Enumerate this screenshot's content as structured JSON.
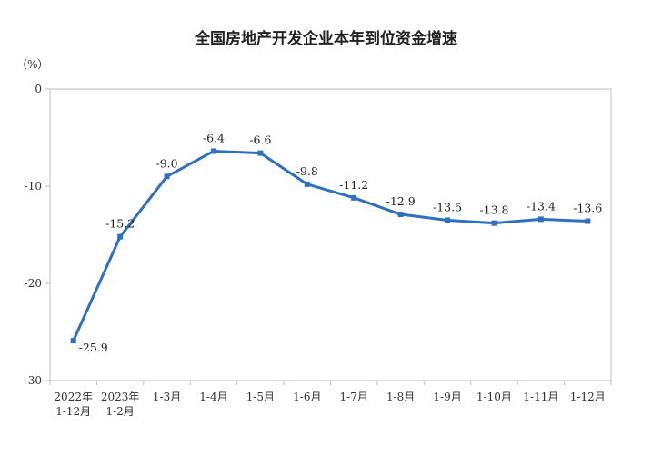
{
  "chart_data": {
    "type": "line",
    "title": "全国房地产开发企业本年到位资金增速",
    "unit": "（%）",
    "ylim": [
      -30,
      0
    ],
    "yticks": [
      "0",
      "-10",
      "-20",
      "-30"
    ],
    "ytick_values": [
      0,
      -10,
      -20,
      -30
    ],
    "categories": [
      [
        "2022年",
        "1-12月"
      ],
      [
        "2023年",
        "1-2月"
      ],
      [
        "1-3月"
      ],
      [
        "1-4月"
      ],
      [
        "1-5月"
      ],
      [
        "1-6月"
      ],
      [
        "1-7月"
      ],
      [
        "1-8月"
      ],
      [
        "1-9月"
      ],
      [
        "1-10月"
      ],
      [
        "1-11月"
      ],
      [
        "1-12月"
      ]
    ],
    "values": [
      -25.9,
      -15.2,
      -9.0,
      -6.4,
      -6.6,
      -9.8,
      -11.2,
      -12.9,
      -13.5,
      -13.8,
      -13.4,
      -13.6
    ],
    "value_labels": [
      "-25.9",
      "-15.2",
      "-9.0",
      "-6.4",
      "-6.6",
      "-9.8",
      "-11.2",
      "-12.9",
      "-13.5",
      "-13.8",
      "-13.4",
      "-13.6"
    ],
    "grid": false,
    "legend": "none",
    "line_color": "#2f6fc0"
  }
}
